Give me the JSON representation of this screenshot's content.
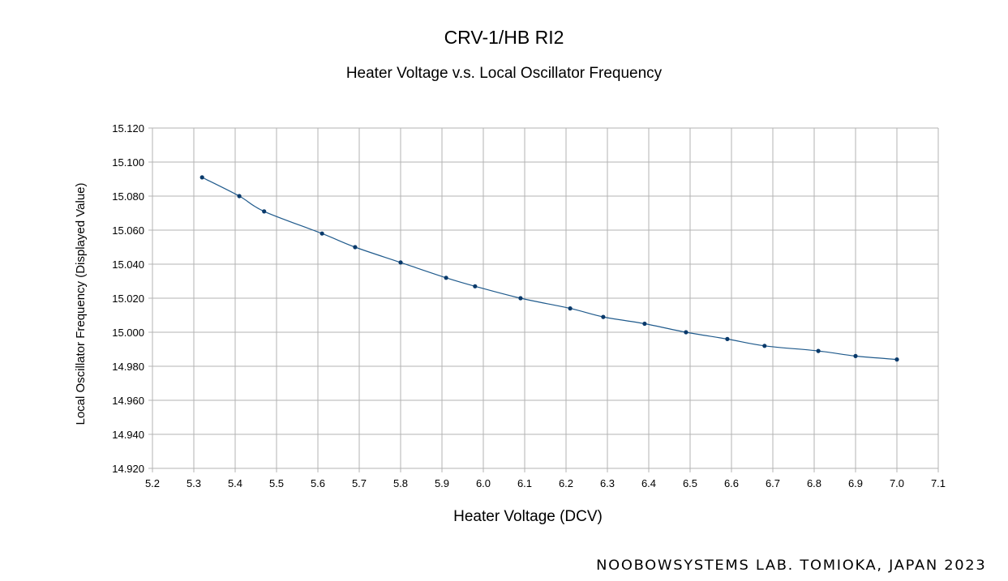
{
  "title": "CRV-1/HB RI2",
  "subtitle": "Heater Voltage v.s. Local Oscillator Frequency",
  "credit": "NOOBOWSYSTEMS LAB.  TOMIOKA, JAPAN 2023",
  "colors": {
    "series": "#1f5a8c",
    "marker": "#0a3a6b",
    "grid": "#b3b3b3"
  },
  "chart_data": {
    "type": "scatter",
    "title": "CRV-1/HB RI2",
    "subtitle": "Heater Voltage v.s. Local Oscillator Frequency",
    "xlabel": "Heater Voltage (DCV)",
    "ylabel": "Local Oscillator Frequency (Displayed Value)",
    "xlim": [
      5.2,
      7.1
    ],
    "ylim": [
      14.92,
      15.12
    ],
    "grid": true,
    "smooth_line": true,
    "xticks": [
      "5.2",
      "5.3",
      "5.4",
      "5.5",
      "5.6",
      "5.7",
      "5.8",
      "5.9",
      "6.0",
      "6.1",
      "6.2",
      "6.3",
      "6.4",
      "6.5",
      "6.6",
      "6.7",
      "6.8",
      "6.9",
      "7.0",
      "7.1"
    ],
    "yticks": [
      "15.120",
      "15.100",
      "15.080",
      "15.060",
      "15.040",
      "15.020",
      "15.000",
      "14.980",
      "14.960",
      "14.940",
      "14.920"
    ],
    "series": [
      {
        "x": [
          5.32,
          5.41,
          5.47,
          5.61,
          5.69,
          5.8,
          5.91,
          5.98,
          6.09,
          6.21,
          6.29,
          6.39,
          6.49,
          6.59,
          6.68,
          6.81,
          6.9,
          7.0
        ],
        "y": [
          15.091,
          15.08,
          15.071,
          15.058,
          15.05,
          15.041,
          15.032,
          15.027,
          15.02,
          15.014,
          15.009,
          15.005,
          15.0,
          14.996,
          14.992,
          14.989,
          14.986,
          14.984
        ]
      }
    ]
  }
}
